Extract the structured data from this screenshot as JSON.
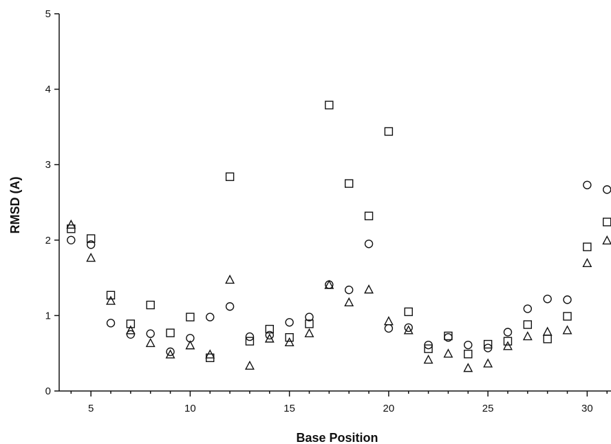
{
  "chart_data": {
    "type": "scatter",
    "title": "",
    "xlabel": "Base Position",
    "ylabel": "RMSD (A)",
    "xlim": [
      3.4,
      31.2
    ],
    "ylim": [
      0,
      5
    ],
    "xticks": [
      5,
      10,
      15,
      20,
      25,
      30
    ],
    "xminor": [
      4,
      6,
      7,
      8,
      9,
      11,
      12,
      13,
      14,
      16,
      17,
      18,
      19,
      21,
      22,
      23,
      24,
      26,
      27,
      28,
      29,
      31
    ],
    "yticks": [
      0,
      1,
      2,
      3,
      4,
      5
    ],
    "grid": false,
    "legend": "none",
    "series": [
      {
        "marker": "square",
        "x": [
          4,
          5,
          6,
          7,
          8,
          9,
          10,
          11,
          12,
          13,
          14,
          15,
          16,
          17,
          18,
          19,
          20,
          21,
          22,
          23,
          24,
          25,
          26,
          27,
          28,
          29,
          30,
          31
        ],
        "y": [
          2.15,
          2.02,
          1.27,
          0.89,
          1.14,
          0.77,
          0.98,
          0.44,
          2.84,
          0.66,
          0.82,
          0.71,
          0.89,
          3.79,
          2.75,
          2.32,
          3.44,
          1.05,
          0.56,
          0.73,
          0.49,
          0.62,
          0.66,
          0.88,
          0.69,
          0.99,
          1.91,
          2.24
        ]
      },
      {
        "marker": "circle",
        "x": [
          4,
          5,
          6,
          7,
          8,
          9,
          10,
          11,
          12,
          13,
          14,
          15,
          16,
          17,
          18,
          19,
          20,
          21,
          22,
          23,
          24,
          25,
          26,
          27,
          28,
          29,
          30,
          31
        ],
        "y": [
          2.0,
          1.94,
          0.9,
          0.75,
          0.76,
          0.52,
          0.7,
          0.98,
          1.12,
          0.72,
          0.74,
          0.91,
          0.98,
          1.41,
          1.34,
          1.95,
          0.83,
          0.84,
          0.61,
          0.71,
          0.61,
          0.57,
          0.78,
          1.09,
          1.22,
          1.21,
          2.73,
          2.67
        ]
      },
      {
        "marker": "triangle",
        "x": [
          4,
          5,
          6,
          7,
          8,
          9,
          10,
          11,
          12,
          13,
          14,
          15,
          16,
          17,
          18,
          19,
          20,
          21,
          22,
          23,
          24,
          25,
          26,
          27,
          28,
          29,
          30,
          31
        ],
        "y": [
          2.2,
          1.76,
          1.19,
          0.8,
          0.63,
          0.48,
          0.6,
          0.48,
          1.47,
          0.33,
          0.69,
          0.64,
          0.76,
          1.4,
          1.17,
          1.34,
          0.92,
          0.8,
          0.41,
          0.49,
          0.3,
          0.36,
          0.59,
          0.72,
          0.78,
          0.8,
          1.69,
          1.99
        ]
      }
    ]
  }
}
